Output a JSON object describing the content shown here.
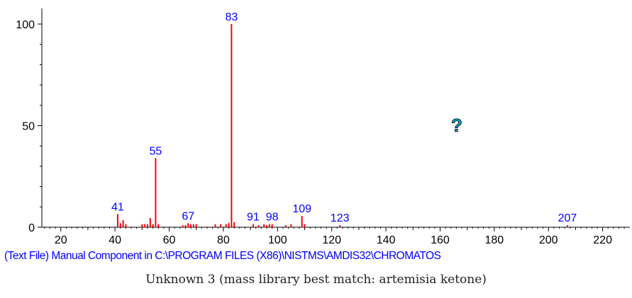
{
  "chart_data": {
    "type": "bar",
    "x_ticks": [
      20,
      40,
      60,
      80,
      100,
      120,
      140,
      160,
      180,
      200,
      220
    ],
    "y_ticks": [
      0,
      50,
      100
    ],
    "xlim": [
      13,
      229
    ],
    "ylim": [
      0,
      100
    ],
    "peaks": [
      {
        "x": 41,
        "y": 6.5
      },
      {
        "x": 42,
        "y": 2.0
      },
      {
        "x": 43,
        "y": 3.5
      },
      {
        "x": 44,
        "y": 1.5
      },
      {
        "x": 50,
        "y": 1.5
      },
      {
        "x": 51,
        "y": 1.5
      },
      {
        "x": 52,
        "y": 1.5
      },
      {
        "x": 53,
        "y": 4.5
      },
      {
        "x": 54,
        "y": 1.5
      },
      {
        "x": 55,
        "y": 34
      },
      {
        "x": 56,
        "y": 1.5
      },
      {
        "x": 65,
        "y": 1.0
      },
      {
        "x": 66,
        "y": 1.0
      },
      {
        "x": 67,
        "y": 2.0
      },
      {
        "x": 68,
        "y": 1.5
      },
      {
        "x": 69,
        "y": 1.5
      },
      {
        "x": 70,
        "y": 1.5
      },
      {
        "x": 77,
        "y": 1.5
      },
      {
        "x": 79,
        "y": 1.5
      },
      {
        "x": 81,
        "y": 1.5
      },
      {
        "x": 82,
        "y": 2.0
      },
      {
        "x": 83,
        "y": 100
      },
      {
        "x": 84,
        "y": 2.5
      },
      {
        "x": 91,
        "y": 1.5
      },
      {
        "x": 93,
        "y": 1.0
      },
      {
        "x": 95,
        "y": 1.5
      },
      {
        "x": 96,
        "y": 1.0
      },
      {
        "x": 97,
        "y": 1.5
      },
      {
        "x": 98,
        "y": 1.5
      },
      {
        "x": 103,
        "y": 1.0
      },
      {
        "x": 105,
        "y": 1.5
      },
      {
        "x": 109,
        "y": 5.5
      },
      {
        "x": 110,
        "y": 1.5
      },
      {
        "x": 123,
        "y": 1.0
      },
      {
        "x": 207,
        "y": 1.0
      }
    ],
    "peak_labels": [
      {
        "x": 41,
        "text": "41"
      },
      {
        "x": 55,
        "text": "55"
      },
      {
        "x": 67,
        "text": "67"
      },
      {
        "x": 83,
        "text": "83"
      },
      {
        "x": 91,
        "text": "91"
      },
      {
        "x": 98,
        "text": "98"
      },
      {
        "x": 109,
        "text": "109"
      },
      {
        "x": 123,
        "text": "123"
      },
      {
        "x": 207,
        "text": "207"
      }
    ],
    "peak_color": "#ff0000",
    "label_color": "#0000ff",
    "axis_color": "#000000"
  },
  "source_line": "(Text File) Manual Component in C:\\PROGRAM FILES (X86)\\NISTMS\\AMDIS32\\CHROMATOS",
  "caption": "Unknown 3 (mass library best match: artemisia ketone)",
  "help_icon": {
    "glyph": "?",
    "name": "question-mark-icon",
    "color": "#00a0c0"
  }
}
